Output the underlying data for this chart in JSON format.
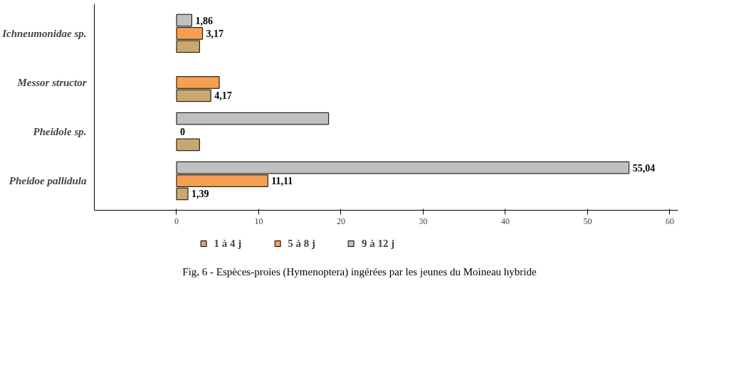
{
  "chart_data": {
    "type": "bar",
    "orientation": "horizontal",
    "title": "Fig, 6 - Espèces-proies (Hymenoptera) ingérées par les jeunes du Moineau hybride",
    "categories": [
      "Ichneumonidae sp.",
      "Messor structor",
      "Pheidole sp.",
      "Pheidoe pallidula"
    ],
    "series": [
      {
        "name": "1 à 4 j",
        "color": "#c8a870",
        "values": [
          2.8,
          4.17,
          2.8,
          1.39
        ],
        "value_labels": [
          null,
          "4,17",
          null,
          "1,39"
        ]
      },
      {
        "name": "5 à 8 j",
        "color": "#f5a050",
        "values": [
          3.17,
          5.2,
          0,
          11.11
        ],
        "value_labels": [
          "3,17",
          null,
          "0",
          "11,11"
        ]
      },
      {
        "name": "9 à 12 j",
        "color": "#c0c0c0",
        "values": [
          1.86,
          null,
          18.5,
          55.04
        ],
        "value_labels": [
          "1,86",
          null,
          null,
          "55,04"
        ]
      }
    ],
    "xlim": [
      -10,
      61
    ],
    "xticks": [
      0,
      10,
      20,
      30,
      40,
      50,
      60
    ],
    "grid": false,
    "legend": "bottom"
  }
}
